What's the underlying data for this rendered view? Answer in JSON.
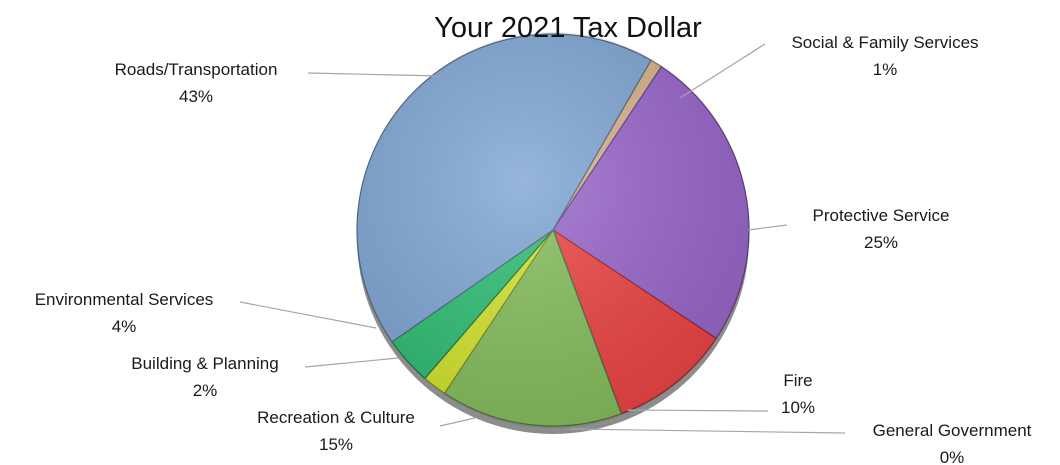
{
  "chart_data": {
    "type": "pie",
    "title": "Your 2021 Tax Dollar",
    "slices": [
      {
        "name": "Social & Family Services",
        "value": 1,
        "label": "1%",
        "color": "#d9b38c"
      },
      {
        "name": "Protective Service",
        "value": 25,
        "label": "25%",
        "color": "#9966cc"
      },
      {
        "name": "Fire",
        "value": 10,
        "label": "10%",
        "color": "#ee4444"
      },
      {
        "name": "General Government",
        "value": 0,
        "label": "0%",
        "color": "#1f3a6b"
      },
      {
        "name": "Recreation & Culture",
        "value": 15,
        "label": "15%",
        "color": "#86bf5d"
      },
      {
        "name": "Building & Planning",
        "value": 2,
        "label": "2%",
        "color": "#d4e62e"
      },
      {
        "name": "Environmental Services",
        "value": 4,
        "label": "4%",
        "color": "#2ebf73"
      },
      {
        "name": "Roads/Transportation",
        "value": 43,
        "label": "43%",
        "color": "#7fa6d4"
      }
    ]
  }
}
